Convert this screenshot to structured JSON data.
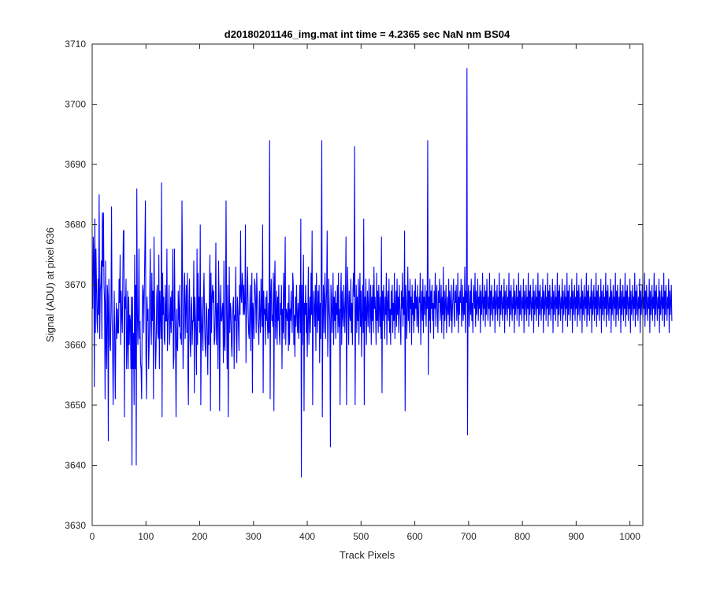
{
  "chart_data": {
    "type": "line",
    "title": "d20180201146_img.mat int time = 4.2365 sec  NaN nm BS04",
    "xlabel": "Track Pixels",
    "ylabel": "Signal (ADU) at pixel 636",
    "xlim": [
      0,
      1024
    ],
    "ylim": [
      3630,
      3710
    ],
    "xticks": [
      0,
      100,
      200,
      300,
      400,
      500,
      600,
      700,
      800,
      900,
      1000
    ],
    "yticks": [
      3630,
      3640,
      3650,
      3660,
      3670,
      3680,
      3690,
      3700,
      3710
    ],
    "grid": false,
    "legend": "none",
    "series": [
      {
        "color": "#0000ff",
        "x_start": 1,
        "x_step": 1,
        "values": [
          3666,
          3678,
          3675,
          3653,
          3681,
          3662,
          3676,
          3670,
          3664,
          3662,
          3671,
          3665,
          3685,
          3661,
          3669,
          3670,
          3674,
          3661,
          3682,
          3673,
          3682,
          3670,
          3667,
          3651,
          3674,
          3660,
          3656,
          3670,
          3668,
          3644,
          3671,
          3666,
          3660,
          3659,
          3666,
          3683,
          3665,
          3660,
          3650,
          3660,
          3669,
          3661,
          3651,
          3662,
          3667,
          3661,
          3666,
          3662,
          3662,
          3671,
          3667,
          3675,
          3660,
          3669,
          3665,
          3662,
          3671,
          3679,
          3679,
          3648,
          3668,
          3666,
          3671,
          3656,
          3660,
          3669,
          3656,
          3668,
          3660,
          3665,
          3664,
          3656,
          3668,
          3640,
          3668,
          3656,
          3662,
          3650,
          3675,
          3656,
          3670,
          3640,
          3686,
          3666,
          3660,
          3665,
          3676,
          3661,
          3664,
          3657,
          3656,
          3651,
          3665,
          3670,
          3669,
          3662,
          3669,
          3676,
          3684,
          3658,
          3651,
          3668,
          3664,
          3666,
          3656,
          3660,
          3668,
          3676,
          3663,
          3660,
          3672,
          3664,
          3669,
          3651,
          3678,
          3667,
          3662,
          3656,
          3660,
          3668,
          3670,
          3662,
          3661,
          3675,
          3656,
          3669,
          3665,
          3661,
          3687,
          3648,
          3672,
          3665,
          3668,
          3661,
          3660,
          3670,
          3664,
          3664,
          3676,
          3659,
          3664,
          3665,
          3670,
          3660,
          3663,
          3668,
          3662,
          3669,
          3664,
          3676,
          3656,
          3658,
          3676,
          3666,
          3660,
          3648,
          3666,
          3660,
          3659,
          3669,
          3665,
          3663,
          3670,
          3661,
          3662,
          3660,
          3684,
          3672,
          3656,
          3662,
          3669,
          3672,
          3661,
          3666,
          3670,
          3662,
          3672,
          3656,
          3650,
          3667,
          3671,
          3661,
          3658,
          3666,
          3668,
          3660,
          3664,
          3664,
          3674,
          3652,
          3668,
          3665,
          3662,
          3655,
          3676,
          3660,
          3672,
          3664,
          3668,
          3662,
          3680,
          3650,
          3662,
          3668,
          3662,
          3659,
          3668,
          3672,
          3664,
          3660,
          3658,
          3667,
          3666,
          3661,
          3655,
          3666,
          3660,
          3669,
          3675,
          3649,
          3672,
          3662,
          3668,
          3670,
          3667,
          3669,
          3660,
          3661,
          3666,
          3677,
          3660,
          3665,
          3667,
          3656,
          3674,
          3668,
          3649,
          3664,
          3670,
          3664,
          3664,
          3666,
          3667,
          3657,
          3674,
          3660,
          3659,
          3667,
          3684,
          3665,
          3656,
          3670,
          3648,
          3663,
          3673,
          3662,
          3667,
          3666,
          3660,
          3658,
          3664,
          3667,
          3668,
          3656,
          3665,
          3664,
          3673,
          3662,
          3657,
          3668,
          3666,
          3663,
          3659,
          3670,
          3665,
          3679,
          3668,
          3667,
          3672,
          3670,
          3665,
          3670,
          3665,
          3667,
          3680,
          3657,
          3665,
          3669,
          3673,
          3666,
          3662,
          3661,
          3666,
          3670,
          3659,
          3666,
          3672,
          3652,
          3667,
          3665,
          3661,
          3671,
          3670,
          3667,
          3662,
          3672,
          3668,
          3664,
          3663,
          3660,
          3669,
          3665,
          3662,
          3671,
          3666,
          3663,
          3680,
          3652,
          3669,
          3665,
          3666,
          3660,
          3668,
          3664,
          3669,
          3663,
          3661,
          3667,
          3662,
          3694,
          3651,
          3668,
          3671,
          3664,
          3665,
          3663,
          3672,
          3649,
          3670,
          3674,
          3661,
          3665,
          3669,
          3660,
          3668,
          3664,
          3670,
          3662,
          3660,
          3667,
          3665,
          3670,
          3656,
          3666,
          3662,
          3672,
          3661,
          3669,
          3678,
          3660,
          3666,
          3665,
          3664,
          3667,
          3659,
          3670,
          3660,
          3666,
          3664,
          3669,
          3665,
          3662,
          3672,
          3670,
          3660,
          3665,
          3658,
          3668,
          3663,
          3670,
          3665,
          3662,
          3667,
          3661,
          3666,
          3670,
          3662,
          3681,
          3638,
          3670,
          3660,
          3668,
          3675,
          3649,
          3667,
          3665,
          3670,
          3662,
          3667,
          3658,
          3664,
          3673,
          3660,
          3665,
          3668,
          3662,
          3672,
          3665,
          3679,
          3650,
          3664,
          3669,
          3666,
          3663,
          3670,
          3659,
          3672,
          3666,
          3662,
          3669,
          3664,
          3670,
          3657,
          3667,
          3661,
          3673,
          3694,
          3648,
          3665,
          3670,
          3662,
          3668,
          3672,
          3661,
          3666,
          3669,
          3679,
          3658,
          3663,
          3671,
          3666,
          3664,
          3643,
          3670,
          3668,
          3662,
          3666,
          3672,
          3660,
          3668,
          3664,
          3669,
          3661,
          3667,
          3665,
          3670,
          3662,
          3672,
          3663,
          3666,
          3650,
          3668,
          3672,
          3660,
          3669,
          3665,
          3663,
          3670,
          3666,
          3662,
          3668,
          3678,
          3650,
          3665,
          3673,
          3667,
          3660,
          3669,
          3665,
          3664,
          3671,
          3662,
          3667,
          3660,
          3669,
          3672,
          3668,
          3693,
          3650,
          3665,
          3670,
          3662,
          3668,
          3664,
          3671,
          3660,
          3666,
          3672,
          3663,
          3669,
          3658,
          3665,
          3670,
          3662,
          3681,
          3650,
          3668,
          3664,
          3671,
          3660,
          3666,
          3669,
          3663,
          3667,
          3671,
          3662,
          3665,
          3670,
          3660,
          3668,
          3664,
          3670,
          3662,
          3673,
          3666,
          3668,
          3665,
          3660,
          3672,
          3664,
          3669,
          3662,
          3670,
          3666,
          3663,
          3668,
          3661,
          3678,
          3652,
          3669,
          3664,
          3670,
          3666,
          3661,
          3668,
          3665,
          3672,
          3660,
          3667,
          3669,
          3664,
          3671,
          3662,
          3666,
          3660,
          3669,
          3665,
          3670,
          3662,
          3667,
          3664,
          3672,
          3661,
          3666,
          3669,
          3663,
          3671,
          3665,
          3668,
          3662,
          3670,
          3667,
          3664,
          3660,
          3669,
          3666,
          3672,
          3663,
          3668,
          3665,
          3679,
          3649,
          3670,
          3667,
          3661,
          3666,
          3673,
          3664,
          3669,
          3662,
          3671,
          3666,
          3668,
          3660,
          3670,
          3665,
          3667,
          3662,
          3669,
          3664,
          3671,
          3666,
          3668,
          3663,
          3670,
          3665,
          3662,
          3668,
          3667,
          3672,
          3660,
          3666,
          3669,
          3664,
          3671,
          3662,
          3668,
          3665,
          3670,
          3667,
          3663,
          3669,
          3666,
          3694,
          3655,
          3668,
          3664,
          3671,
          3662,
          3669,
          3666,
          3670,
          3664,
          3667,
          3661,
          3669,
          3666,
          3672,
          3663,
          3668,
          3670,
          3665,
          3662,
          3669,
          3667,
          3671,
          3664,
          3666,
          3670,
          3662,
          3668,
          3665,
          3673,
          3661,
          3669,
          3664,
          3667,
          3670,
          3662,
          3666,
          3668,
          3665,
          3671,
          3663,
          3669,
          3667,
          3664,
          3670,
          3662,
          3666,
          3668,
          3671,
          3665,
          3663,
          3669,
          3667,
          3670,
          3664,
          3666,
          3672,
          3662,
          3668,
          3665,
          3669,
          3667,
          3671,
          3663,
          3666,
          3670,
          3664,
          3668,
          3665,
          3673,
          3662,
          3669,
          3667,
          3706,
          3645,
          3668,
          3670,
          3663,
          3666,
          3669,
          3665,
          3671,
          3664,
          3667,
          3662,
          3670,
          3668,
          3666,
          3672,
          3663,
          3669,
          3665,
          3667,
          3671,
          3664,
          3668,
          3666,
          3670,
          3662,
          3669,
          3665,
          3667,
          3672,
          3664,
          3668,
          3666,
          3670,
          3663,
          3669,
          3665,
          3671,
          3667,
          3664,
          3668,
          3666,
          3672,
          3663,
          3669,
          3665,
          3670,
          3667,
          3664,
          3668,
          3666,
          3671,
          3662,
          3669,
          3665,
          3667,
          3670,
          3664,
          3668,
          3666,
          3672,
          3663,
          3669,
          3665,
          3670,
          3667,
          3664,
          3668,
          3666,
          3671,
          3662,
          3669,
          3665,
          3667,
          3670,
          3664,
          3668,
          3666,
          3672,
          3663,
          3669,
          3665,
          3670,
          3667,
          3664,
          3668,
          3666,
          3671,
          3662,
          3669,
          3665,
          3667,
          3670,
          3664,
          3668,
          3666,
          3672,
          3663,
          3669,
          3665,
          3670,
          3667,
          3664,
          3668,
          3666,
          3671,
          3662,
          3669,
          3665,
          3667,
          3670,
          3664,
          3668,
          3666,
          3672,
          3663,
          3669,
          3665,
          3670,
          3667,
          3664,
          3668,
          3666,
          3671,
          3662,
          3669,
          3665,
          3667,
          3670,
          3664,
          3668,
          3666,
          3672,
          3663,
          3669,
          3665,
          3670,
          3667,
          3664,
          3668,
          3666,
          3671,
          3662,
          3669,
          3665,
          3667,
          3670,
          3664,
          3668,
          3666,
          3672,
          3663,
          3669,
          3665,
          3670,
          3667,
          3664,
          3668,
          3666,
          3671,
          3662,
          3669,
          3665,
          3667,
          3670,
          3664,
          3668,
          3666,
          3672,
          3663,
          3669,
          3665,
          3670,
          3667,
          3664,
          3668,
          3666,
          3671,
          3662,
          3669,
          3665,
          3667,
          3670,
          3664,
          3668,
          3666,
          3672,
          3663,
          3669,
          3665,
          3670,
          3667,
          3664,
          3668,
          3666,
          3671,
          3662,
          3669,
          3665,
          3667,
          3670,
          3664,
          3668,
          3666,
          3672,
          3663,
          3669,
          3665,
          3670,
          3667,
          3664,
          3668,
          3666,
          3671,
          3662,
          3669,
          3665,
          3667,
          3670,
          3664,
          3668,
          3666,
          3672,
          3663,
          3669,
          3665,
          3670,
          3667,
          3664,
          3668,
          3666,
          3671,
          3662,
          3669,
          3665,
          3667,
          3670,
          3664,
          3668,
          3666,
          3672,
          3663,
          3669,
          3665,
          3670,
          3667,
          3664,
          3668,
          3666,
          3671,
          3662,
          3669,
          3665,
          3667,
          3670,
          3664,
          3668,
          3666,
          3672,
          3663,
          3669,
          3665,
          3670,
          3667,
          3664,
          3668,
          3666,
          3671,
          3662,
          3669,
          3665,
          3667,
          3670,
          3664,
          3668,
          3666,
          3672,
          3663,
          3669,
          3665,
          3670,
          3667,
          3664,
          3668,
          3666,
          3671,
          3662,
          3669,
          3665,
          3667,
          3670,
          3664,
          3668,
          3666,
          3672,
          3663,
          3669,
          3665,
          3670,
          3667,
          3664,
          3668,
          3666,
          3671,
          3662,
          3669,
          3665,
          3667,
          3670,
          3664,
          3668,
          3666,
          3672,
          3663,
          3669,
          3665,
          3670,
          3667,
          3664,
          3668,
          3666,
          3671,
          3662,
          3669,
          3665,
          3667,
          3670,
          3664,
          3668,
          3666,
          3672,
          3663,
          3669,
          3665,
          3670,
          3667,
          3664,
          3668,
          3666,
          3671,
          3662,
          3669,
          3665,
          3667,
          3670,
          3664,
          3668,
          3666,
          3672,
          3663,
          3669,
          3665,
          3670,
          3667,
          3664,
          3668,
          3666,
          3671,
          3662,
          3669,
          3665,
          3667,
          3670,
          3664,
          3668,
          3666,
          3672,
          3663,
          3669,
          3665,
          3670,
          3667,
          3664,
          3668,
          3666,
          3671,
          3662,
          3669,
          3665,
          3667,
          3670,
          3664
        ]
      }
    ]
  }
}
